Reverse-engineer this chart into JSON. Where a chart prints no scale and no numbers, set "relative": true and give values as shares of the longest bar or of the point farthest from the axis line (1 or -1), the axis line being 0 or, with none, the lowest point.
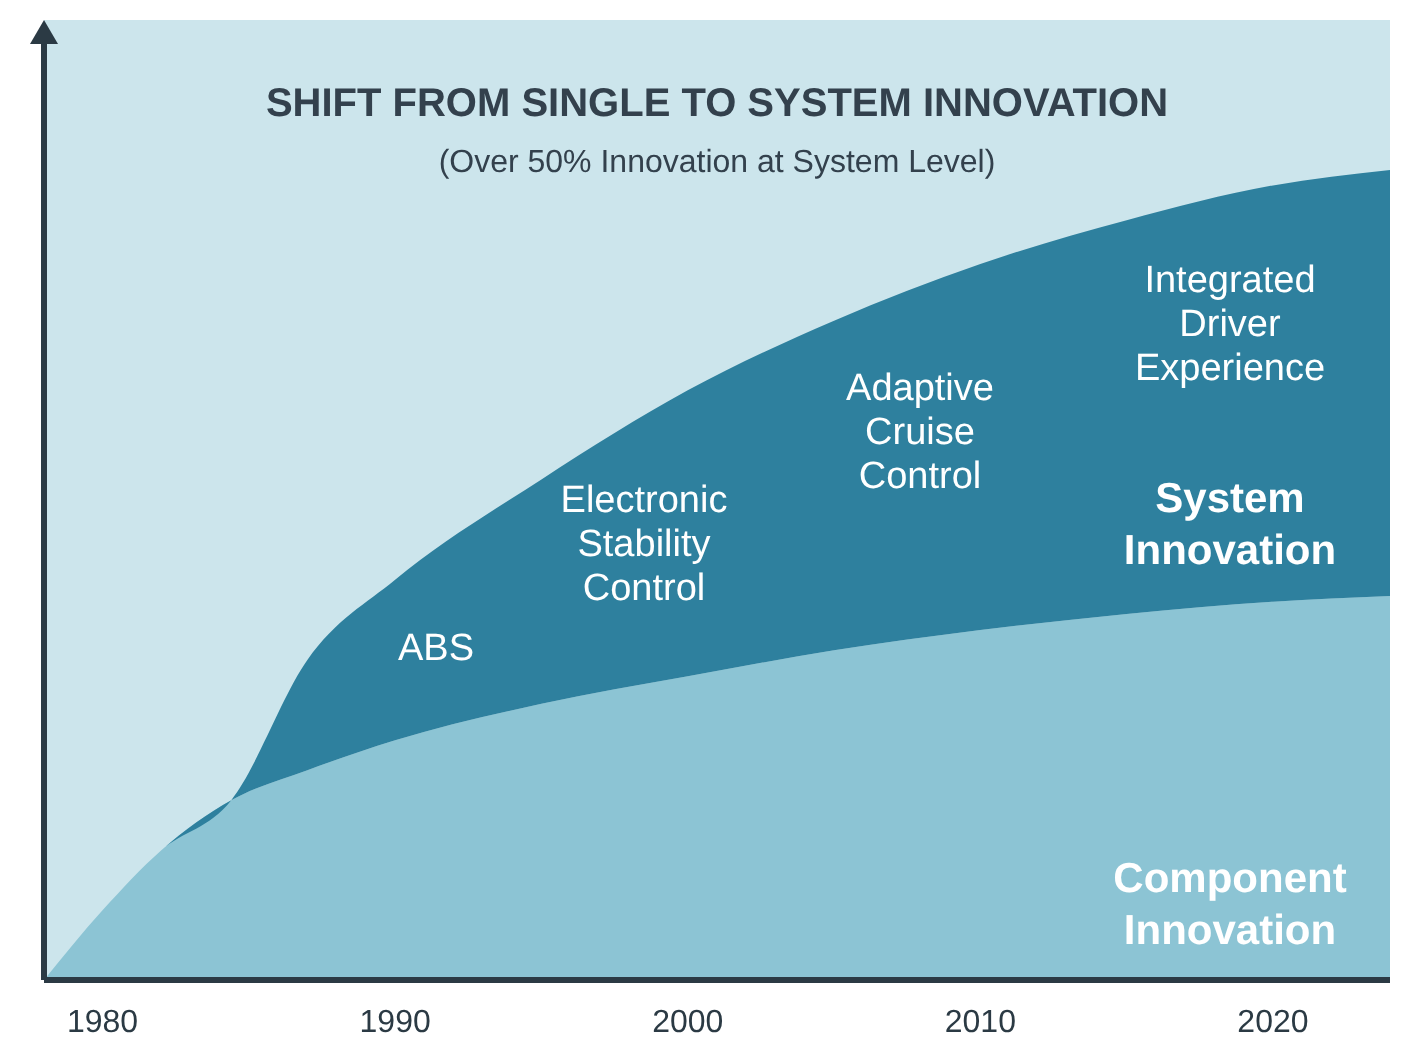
{
  "chart_data": {
    "type": "area",
    "title": "SHIFT FROM SINGLE TO SYSTEM INNOVATION",
    "subtitle": "(Over 50% Innovation at System Level)",
    "relative": true,
    "stacked": true,
    "grid": false,
    "x": [
      1978,
      1980,
      1982,
      1984.4,
      1987,
      1990,
      1995,
      2000,
      2005,
      2010,
      2015,
      2020,
      2024
    ],
    "xlim": [
      1978,
      2024
    ],
    "xticks": [
      1980,
      1990,
      2000,
      2010,
      2020
    ],
    "series": [
      {
        "name": "Component Innovation",
        "color": "#8cc4d4",
        "values": [
          0,
          0.086,
          0.16,
          0.222,
          0.259,
          0.296,
          0.341,
          0.375,
          0.407,
          0.432,
          0.452,
          0.467,
          0.474
        ]
      },
      {
        "name": "System Innovation",
        "color": "#2e809e",
        "values": [
          0,
          0,
          0,
          0,
          0.136,
          0.198,
          0.277,
          0.353,
          0.407,
          0.452,
          0.486,
          0.514,
          0.526
        ]
      }
    ],
    "annotations": [
      "ABS",
      "Electronic\nStability\nControl",
      "Adaptive\nCruise\nControl",
      "Integrated\nDriver\nExperience"
    ]
  }
}
